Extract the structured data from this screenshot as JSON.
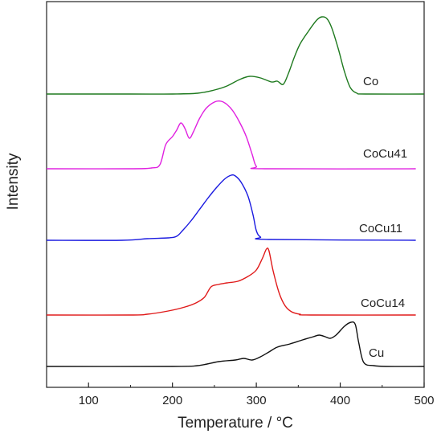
{
  "chart_data": {
    "type": "line",
    "xlabel": "Temperature / °C",
    "ylabel": "Intensity",
    "xlim": [
      50,
      500
    ],
    "x_ticks": [
      100,
      200,
      300,
      400,
      500
    ],
    "grid": false,
    "y_tick_labels": false,
    "series": [
      {
        "name": "Co",
        "color": "#1f7a1f",
        "offset": 117,
        "points": [
          [
            50,
            0
          ],
          [
            150,
            0
          ],
          [
            200,
            0
          ],
          [
            230,
            -1
          ],
          [
            250,
            -5
          ],
          [
            265,
            -10
          ],
          [
            280,
            -18
          ],
          [
            292,
            -22
          ],
          [
            305,
            -20
          ],
          [
            318,
            -15
          ],
          [
            325,
            -16
          ],
          [
            332,
            -12
          ],
          [
            338,
            -25
          ],
          [
            345,
            -45
          ],
          [
            352,
            -62
          ],
          [
            362,
            -78
          ],
          [
            372,
            -92
          ],
          [
            378,
            -96
          ],
          [
            384,
            -94
          ],
          [
            390,
            -82
          ],
          [
            398,
            -55
          ],
          [
            405,
            -28
          ],
          [
            412,
            -8
          ],
          [
            420,
            -1
          ],
          [
            430,
            0
          ],
          [
            500,
            0
          ]
        ]
      },
      {
        "name": "CoCu41",
        "color": "#e020e0",
        "offset": 210,
        "points": [
          [
            50,
            0
          ],
          [
            150,
            0
          ],
          [
            175,
            -1
          ],
          [
            185,
            -5
          ],
          [
            192,
            -30
          ],
          [
            200,
            -40
          ],
          [
            205,
            -48
          ],
          [
            210,
            -57
          ],
          [
            215,
            -50
          ],
          [
            220,
            -38
          ],
          [
            225,
            -46
          ],
          [
            232,
            -62
          ],
          [
            240,
            -75
          ],
          [
            250,
            -83
          ],
          [
            258,
            -84
          ],
          [
            265,
            -80
          ],
          [
            272,
            -72
          ],
          [
            280,
            -58
          ],
          [
            288,
            -40
          ],
          [
            295,
            -18
          ],
          [
            300,
            -3
          ],
          [
            310,
            0
          ],
          [
            490,
            0
          ]
        ]
      },
      {
        "name": "CoCu11",
        "color": "#1a1ae0",
        "offset": 299,
        "points": [
          [
            50,
            0
          ],
          [
            140,
            0
          ],
          [
            170,
            -2
          ],
          [
            195,
            -3
          ],
          [
            205,
            -5
          ],
          [
            212,
            -12
          ],
          [
            222,
            -24
          ],
          [
            232,
            -38
          ],
          [
            242,
            -52
          ],
          [
            252,
            -65
          ],
          [
            262,
            -76
          ],
          [
            270,
            -81
          ],
          [
            275,
            -80
          ],
          [
            282,
            -72
          ],
          [
            290,
            -55
          ],
          [
            296,
            -32
          ],
          [
            300,
            -12
          ],
          [
            305,
            -4
          ],
          [
            315,
            -1
          ],
          [
            490,
            0
          ]
        ]
      },
      {
        "name": "CoCu14",
        "color": "#e01a1a",
        "offset": 392,
        "points": [
          [
            50,
            0
          ],
          [
            150,
            0
          ],
          [
            170,
            -1
          ],
          [
            195,
            -5
          ],
          [
            215,
            -10
          ],
          [
            228,
            -15
          ],
          [
            238,
            -22
          ],
          [
            246,
            -35
          ],
          [
            255,
            -38
          ],
          [
            265,
            -40
          ],
          [
            278,
            -42
          ],
          [
            290,
            -48
          ],
          [
            300,
            -56
          ],
          [
            307,
            -70
          ],
          [
            312,
            -82
          ],
          [
            315,
            -80
          ],
          [
            320,
            -55
          ],
          [
            327,
            -28
          ],
          [
            334,
            -12
          ],
          [
            342,
            -4
          ],
          [
            352,
            -1
          ],
          [
            365,
            0
          ],
          [
            490,
            0
          ]
        ]
      },
      {
        "name": "Cu",
        "color": "#111111",
        "offset": 456,
        "points": [
          [
            50,
            0
          ],
          [
            200,
            0
          ],
          [
            230,
            -1
          ],
          [
            255,
            -6
          ],
          [
            275,
            -8
          ],
          [
            285,
            -10
          ],
          [
            295,
            -8
          ],
          [
            305,
            -12
          ],
          [
            315,
            -18
          ],
          [
            325,
            -24
          ],
          [
            340,
            -28
          ],
          [
            355,
            -33
          ],
          [
            368,
            -37
          ],
          [
            375,
            -39
          ],
          [
            382,
            -37
          ],
          [
            388,
            -35
          ],
          [
            395,
            -39
          ],
          [
            405,
            -50
          ],
          [
            413,
            -55
          ],
          [
            418,
            -52
          ],
          [
            422,
            -30
          ],
          [
            428,
            -5
          ],
          [
            440,
            -1
          ],
          [
            455,
            0
          ],
          [
            500,
            0
          ]
        ]
      }
    ]
  }
}
